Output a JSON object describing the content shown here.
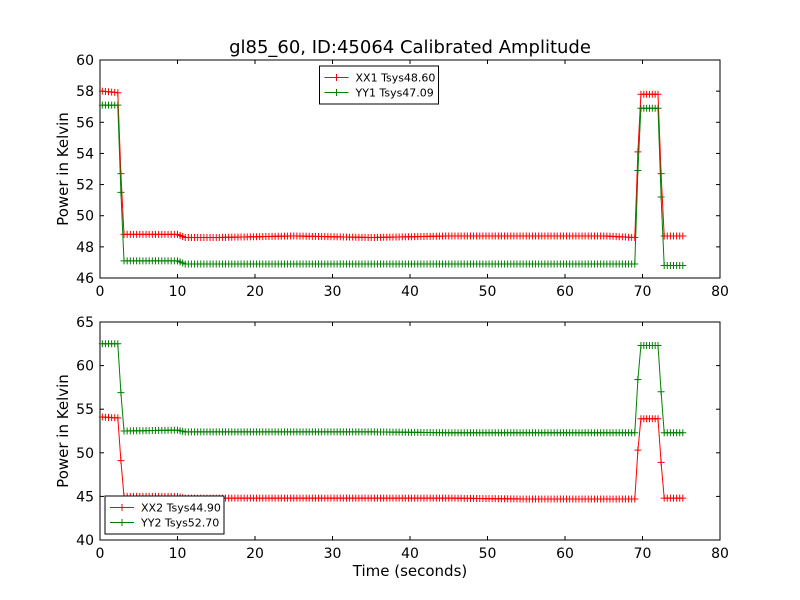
{
  "title": "gl85_60, ID:45064 Calibrated Amplitude",
  "chart_data": [
    {
      "type": "line",
      "title": "gl85_60, ID:45064 Calibrated Amplitude",
      "xlabel": "",
      "ylabel": "Power in Kelvin",
      "xlim": [
        0,
        80
      ],
      "ylim": [
        46,
        60
      ],
      "xticks": [
        0,
        10,
        20,
        30,
        40,
        50,
        60,
        70,
        80
      ],
      "yticks": [
        46,
        48,
        50,
        52,
        54,
        56,
        58,
        60
      ],
      "grid": false,
      "legend_position": "upper-center",
      "series": [
        {
          "name": "XX1 Tsys48.60",
          "color": "#ff0000",
          "x": [
            0.3,
            2.3,
            2.7,
            3.1,
            10.0,
            11.0,
            15.0,
            25.0,
            35.0,
            45.0,
            55.0,
            65.0,
            69.0,
            69.4,
            69.8,
            72.0,
            72.4,
            72.8,
            75.2
          ],
          "y": [
            58.0,
            57.9,
            52.7,
            48.8,
            48.8,
            48.6,
            48.6,
            48.7,
            48.6,
            48.7,
            48.7,
            48.7,
            48.6,
            54.1,
            57.8,
            57.8,
            52.7,
            48.7,
            48.7
          ]
        },
        {
          "name": "YY1 Tsys47.09",
          "color": "#008000",
          "x": [
            0.3,
            2.3,
            2.7,
            3.1,
            10.0,
            11.0,
            15.0,
            25.0,
            35.0,
            45.0,
            55.0,
            65.0,
            69.0,
            69.4,
            69.8,
            72.0,
            72.4,
            72.8,
            75.2
          ],
          "y": [
            57.1,
            57.1,
            51.5,
            47.1,
            47.1,
            46.9,
            46.9,
            46.9,
            46.9,
            46.9,
            46.9,
            46.9,
            46.9,
            52.9,
            56.9,
            56.9,
            51.2,
            46.8,
            46.8
          ]
        }
      ]
    },
    {
      "type": "line",
      "title": "",
      "xlabel": "Time (seconds)",
      "ylabel": "Power in Kelvin",
      "xlim": [
        0,
        80
      ],
      "ylim": [
        40,
        65
      ],
      "xticks": [
        0,
        10,
        20,
        30,
        40,
        50,
        60,
        70,
        80
      ],
      "yticks": [
        40,
        45,
        50,
        55,
        60,
        65
      ],
      "grid": false,
      "legend_position": "lower-left",
      "series": [
        {
          "name": "XX2 Tsys44.90",
          "color": "#ff0000",
          "x": [
            0.3,
            2.3,
            2.7,
            3.1,
            10.0,
            11.0,
            15.0,
            25.0,
            35.0,
            45.0,
            55.0,
            65.0,
            69.0,
            69.4,
            69.8,
            72.0,
            72.4,
            72.8,
            75.2
          ],
          "y": [
            54.1,
            54.0,
            49.1,
            45.0,
            45.0,
            44.8,
            44.8,
            44.8,
            44.8,
            44.8,
            44.7,
            44.7,
            44.7,
            50.3,
            53.9,
            53.9,
            48.9,
            44.8,
            44.8
          ]
        },
        {
          "name": "YY2 Tsys52.70",
          "color": "#008000",
          "x": [
            0.3,
            2.3,
            2.7,
            3.1,
            10.0,
            11.0,
            15.0,
            25.0,
            35.0,
            45.0,
            55.0,
            65.0,
            69.0,
            69.4,
            69.8,
            72.0,
            72.4,
            72.8,
            75.2
          ],
          "y": [
            62.5,
            62.5,
            56.9,
            52.5,
            52.6,
            52.4,
            52.4,
            52.4,
            52.4,
            52.3,
            52.3,
            52.3,
            52.3,
            58.4,
            62.3,
            62.3,
            57.0,
            52.3,
            52.3
          ]
        }
      ]
    }
  ]
}
